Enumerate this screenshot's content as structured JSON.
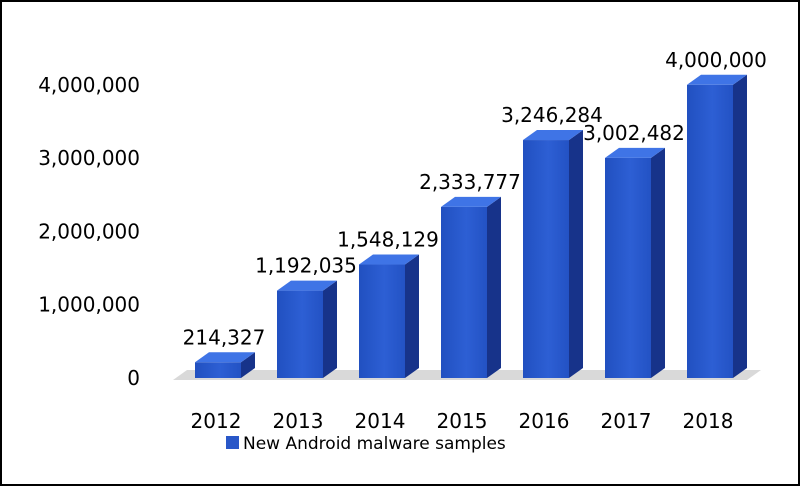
{
  "chart_data": {
    "type": "bar",
    "style": "3d-column",
    "categories": [
      "2012",
      "2013",
      "2014",
      "2015",
      "2016",
      "2017",
      "2018"
    ],
    "series": [
      {
        "name": "New Android malware samples",
        "values": [
          214327,
          1192035,
          1548129,
          2333777,
          3246284,
          3002482,
          4000000
        ]
      }
    ],
    "data_labels": [
      "214,327",
      "1,192,035",
      "1,548,129",
      "2,333,777",
      "3,246,284",
      "3,002,482",
      "4,000,000"
    ],
    "y_tick_labels": [
      "0",
      "1,000,000",
      "2,000,000",
      "3,000,000",
      "4,000,000"
    ],
    "y_ticks": [
      0,
      1000000,
      2000000,
      3000000,
      4000000
    ],
    "ylim": [
      0,
      4000000
    ],
    "grid": false,
    "legend": "bottom",
    "colors": {
      "bar_front": "#2957c8",
      "bar_top": "#3f74e6",
      "bar_side": "#17338a",
      "floor": "#d9d9d9"
    }
  }
}
